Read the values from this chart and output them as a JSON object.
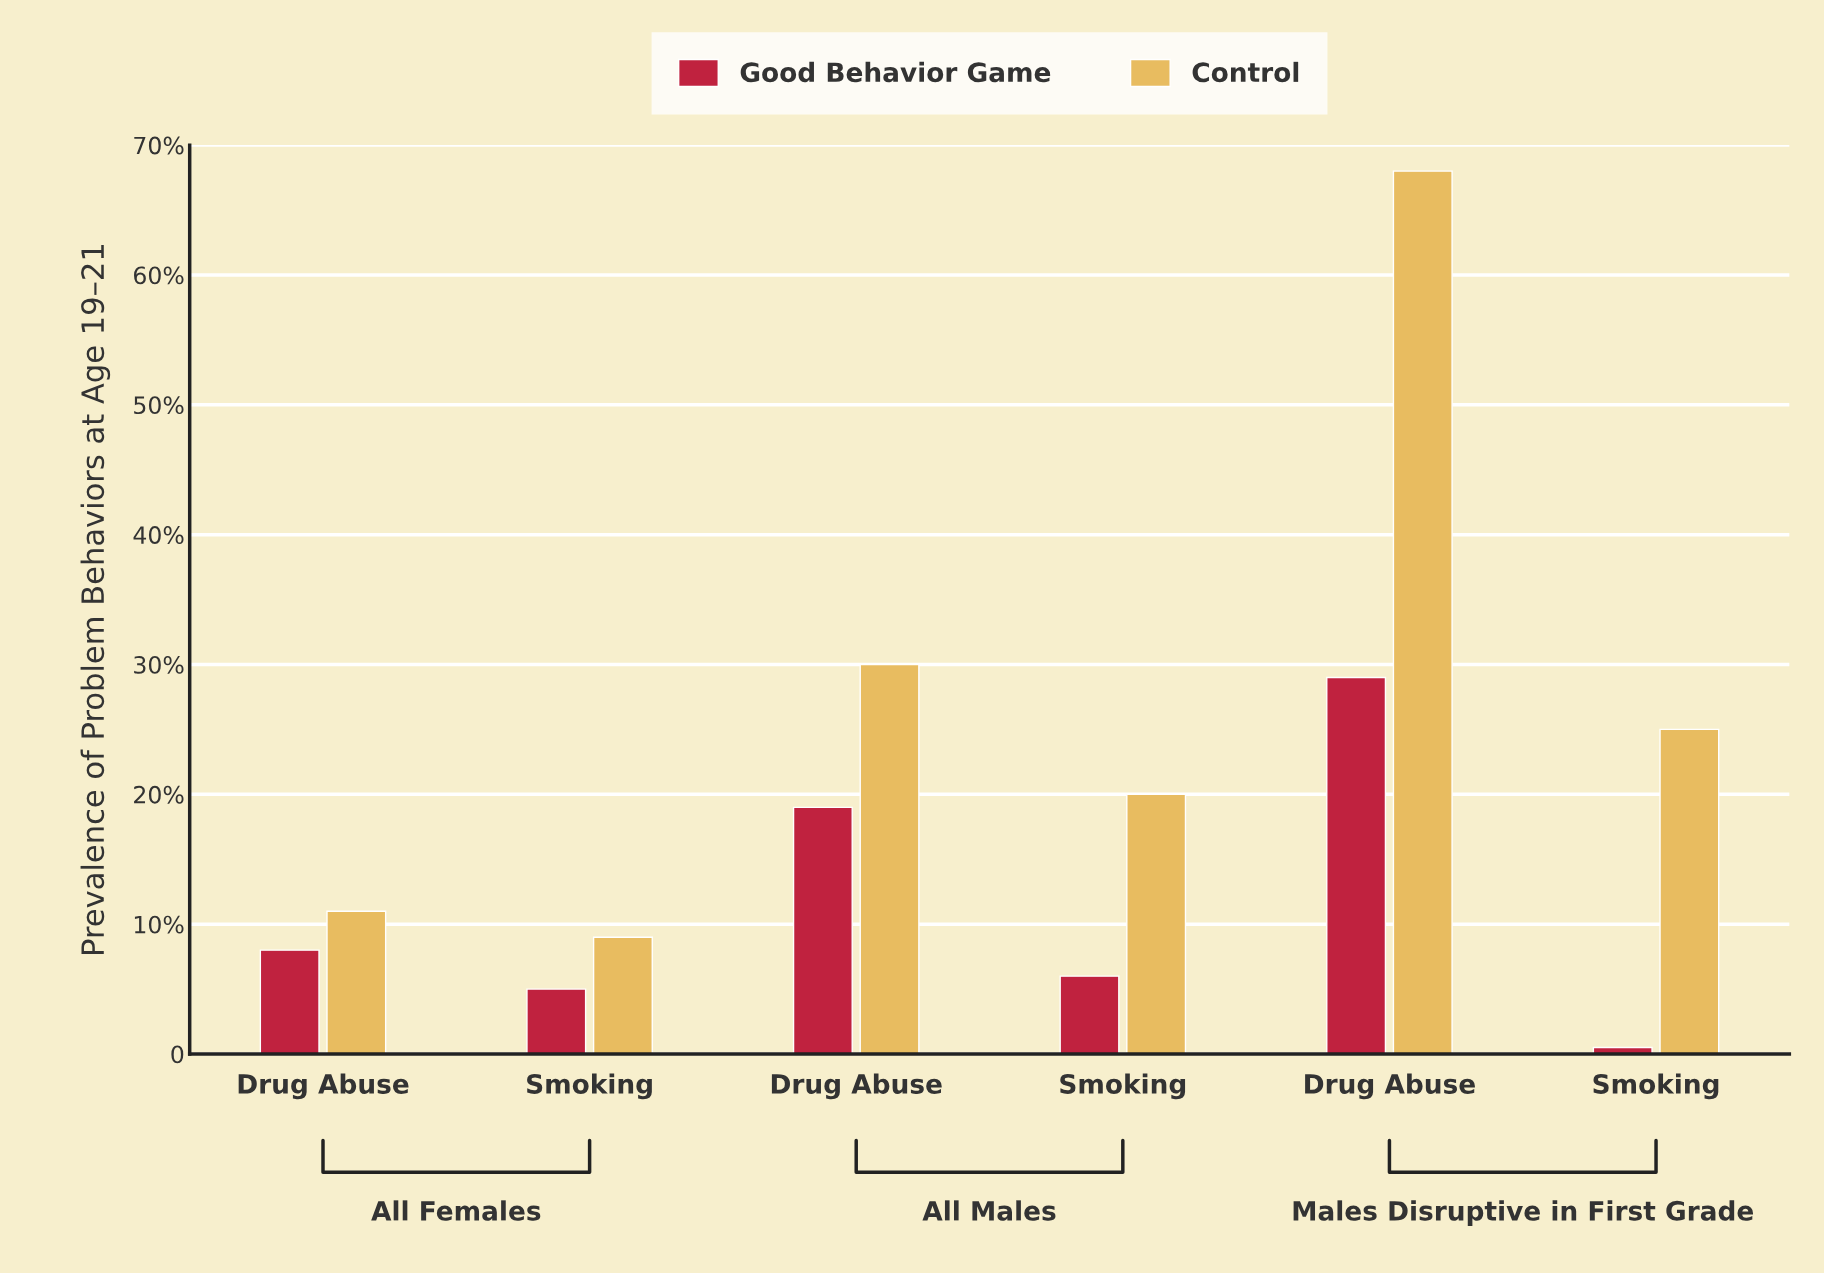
{
  "chart_data": {
    "type": "bar",
    "categories": [
      "Drug Abuse",
      "Smoking",
      "Drug Abuse",
      "Smoking",
      "Drug Abuse",
      "Smoking"
    ],
    "series": [
      {
        "name": "Good Behavior Game",
        "color": "#c0223f",
        "values": [
          8,
          5,
          19,
          6,
          29,
          0.5
        ]
      },
      {
        "name": "Control",
        "color": "#e8bc60",
        "values": [
          11,
          9,
          30,
          20,
          68,
          25
        ]
      }
    ],
    "ylabel": "Prevalence of Problem Behaviors at Age 19–21",
    "ylim": [
      0,
      70
    ],
    "yticks": [
      0,
      {
        "value": 10,
        "label": "10%"
      },
      {
        "value": 20,
        "label": "20%"
      },
      {
        "value": 30,
        "label": "30%"
      },
      {
        "value": 40,
        "label": "40%"
      },
      {
        "value": 50,
        "label": "50%"
      },
      {
        "value": 60,
        "label": "60%"
      },
      {
        "value": 70,
        "label": "70%"
      }
    ],
    "annotations": [
      "All Females",
      "All Males",
      "Males Disruptive in First Grade"
    ],
    "grid": "y",
    "legend": "top"
  }
}
